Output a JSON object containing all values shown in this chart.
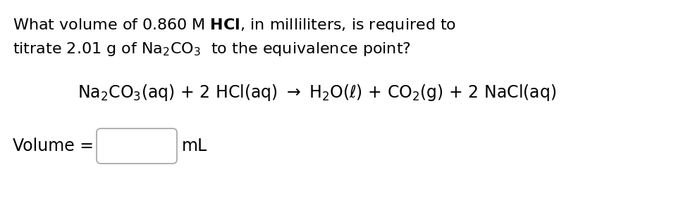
{
  "background_color": "#ffffff",
  "line1": "What volume of 0.860 M $\\mathdefault{HCl}$, in milliliters, is required to",
  "line2": "titrate 2.01 g of Na$_2$CO$_3$  to the equivalence point?",
  "equation": "Na$_2$CO$_3$(aq) + 2 HCl(aq) $\\rightarrow$ H$_2$O($\\ell$) + CO$_2$(g) + 2 NaCl(aq)",
  "volume_label": "Volume = ",
  "unit_label": "mL",
  "font_size_question": 16,
  "font_size_equation": 17,
  "font_size_volume": 17,
  "text_color": "#000000",
  "box_edge_color": "#aaaaaa"
}
